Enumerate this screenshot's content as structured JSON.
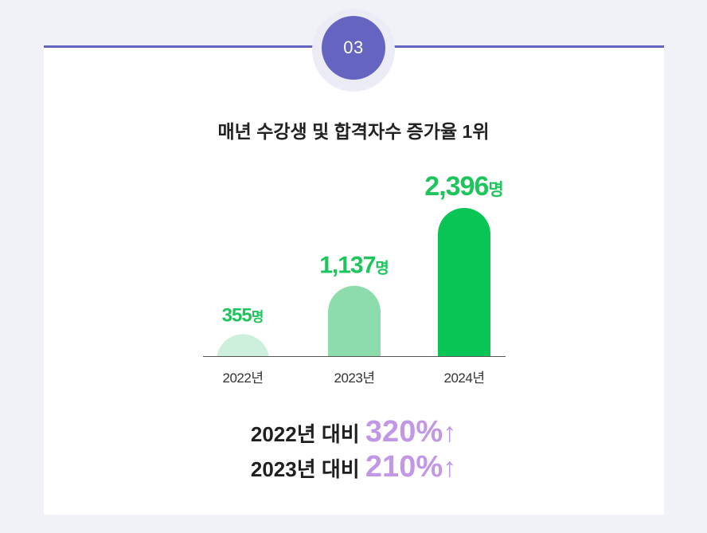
{
  "badge": {
    "number": "03"
  },
  "headline": "매년 수강생 및 합격자수 증가율 1위",
  "colors": {
    "accent": "#6564c0",
    "bar_2022": "#cdf0dc",
    "bar_2023": "#8ddcac",
    "bar_2024": "#08c556",
    "value_label": "#1ec55c",
    "percent": "#c197e6"
  },
  "chart_data": {
    "type": "bar",
    "title": "",
    "xlabel": "",
    "ylabel": "",
    "categories": [
      "2022년",
      "2023년",
      "2024년"
    ],
    "values": [
      355,
      1137,
      2396
    ],
    "value_labels": [
      {
        "number": "355",
        "unit": "명"
      },
      {
        "number": "1,137",
        "unit": "명"
      },
      {
        "number": "2,396",
        "unit": "명"
      }
    ],
    "grid": false
  },
  "comparisons": [
    {
      "label": "2022년 대비",
      "percent": "320%",
      "arrow": "↑"
    },
    {
      "label": "2023년 대비",
      "percent": "210%",
      "arrow": "↑"
    }
  ]
}
